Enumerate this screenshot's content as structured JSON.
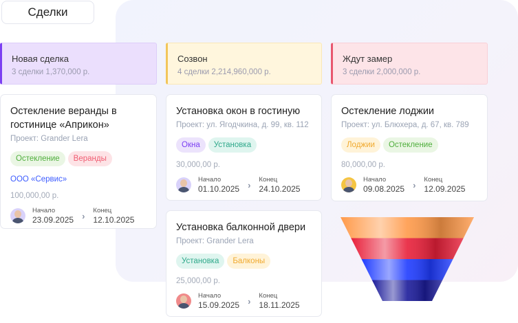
{
  "header": {
    "title": "Сделки"
  },
  "columns": [
    {
      "name": "Новая сделка",
      "summary": "3 сделки  1,370,000 р.",
      "color": "#7b3ff2"
    },
    {
      "name": "Созвон",
      "summary": "4 сделки  2,214,960,000 р.",
      "color": "#f2c65a"
    },
    {
      "name": "Ждут замер",
      "summary": "3 сделки  2,000,000 р.",
      "color": "#e8566e"
    }
  ],
  "cards": [
    {
      "title": "Остекление веранды в гостинице «Априкон»",
      "project": "Проект: Grander Lera",
      "tags": [
        "Остекление",
        "Веранды"
      ],
      "org": "ООО «Сервис»",
      "price": "100,000,00 р.",
      "start_label": "Начало",
      "start": "23.09.2025",
      "end_label": "Конец",
      "end": "12.10.2025"
    },
    {
      "title": "Установка окон в гостиную",
      "project": "Проект: ул. Ягодчкина, д. 99, кв. 112",
      "tags": [
        "Окна",
        "Установка"
      ],
      "price": "30,000,00 р.",
      "start_label": "Начало",
      "start": "01.10.2025",
      "end_label": "Конец",
      "end": "24.10.2025"
    },
    {
      "title": "Установка балконной двери",
      "project": "Проект: Grander Lera",
      "tags": [
        "Установка",
        "Балконы"
      ],
      "price": "25,000,00 р.",
      "start_label": "Начало",
      "start": "15.09.2025",
      "end_label": "Конец",
      "end": "18.11.2025"
    },
    {
      "title": "Остекление лоджии",
      "project": "Проект: ул. Блюхера, д. 67, кв. 789",
      "tags": [
        "Лоджии",
        "Остекление"
      ],
      "price": "80,000,00 р.",
      "start_label": "Начало",
      "start": "09.08.2025",
      "end_label": "Конец",
      "end": "12.09.2025"
    }
  ],
  "funnel": {
    "colors": [
      "#ff9a4a",
      "#e8203a",
      "#1f3cff",
      "#1c1c9a"
    ]
  }
}
